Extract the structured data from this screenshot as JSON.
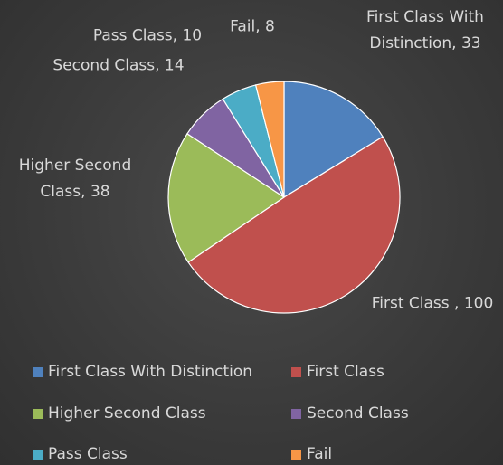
{
  "chart_data": {
    "type": "pie",
    "categories": [
      "First Class With Distinction",
      "First Class",
      "Higher Second Class",
      "Second Class",
      "Pass Class",
      "Fail"
    ],
    "values": [
      33,
      100,
      38,
      14,
      10,
      8
    ],
    "value_labels": [
      "First Class With Distinction, 33",
      "First Class , 100",
      "Higher Second Class, 38",
      "Second Class, 14",
      "Pass Class, 10",
      "Fail, 8"
    ],
    "colors": [
      "#4f81bd",
      "#c0504d",
      "#9bbb59",
      "#8064a2",
      "#4bacc6",
      "#f79646"
    ],
    "legend": "bottom"
  }
}
